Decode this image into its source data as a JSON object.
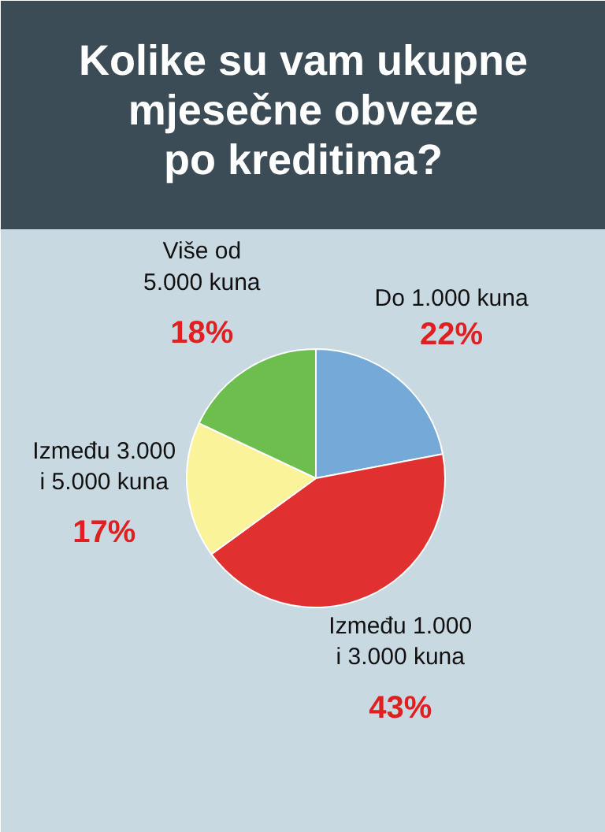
{
  "chart_data": {
    "type": "pie",
    "title": "Kolike su vam ukupne\nmjesečne obveze\npo kreditima?",
    "categories": [
      "Do 1.000 kuna",
      "Između 1.000\ni 3.000 kuna",
      "Između 3.000\ni 5.000 kuna",
      "Više od\n5.000 kuna"
    ],
    "values": [
      22,
      43,
      17,
      18
    ],
    "colors": [
      "#74a9d8",
      "#e03030",
      "#fbf39a",
      "#6cbf4e"
    ],
    "value_labels": [
      "22%",
      "43%",
      "17%",
      "18%"
    ]
  }
}
